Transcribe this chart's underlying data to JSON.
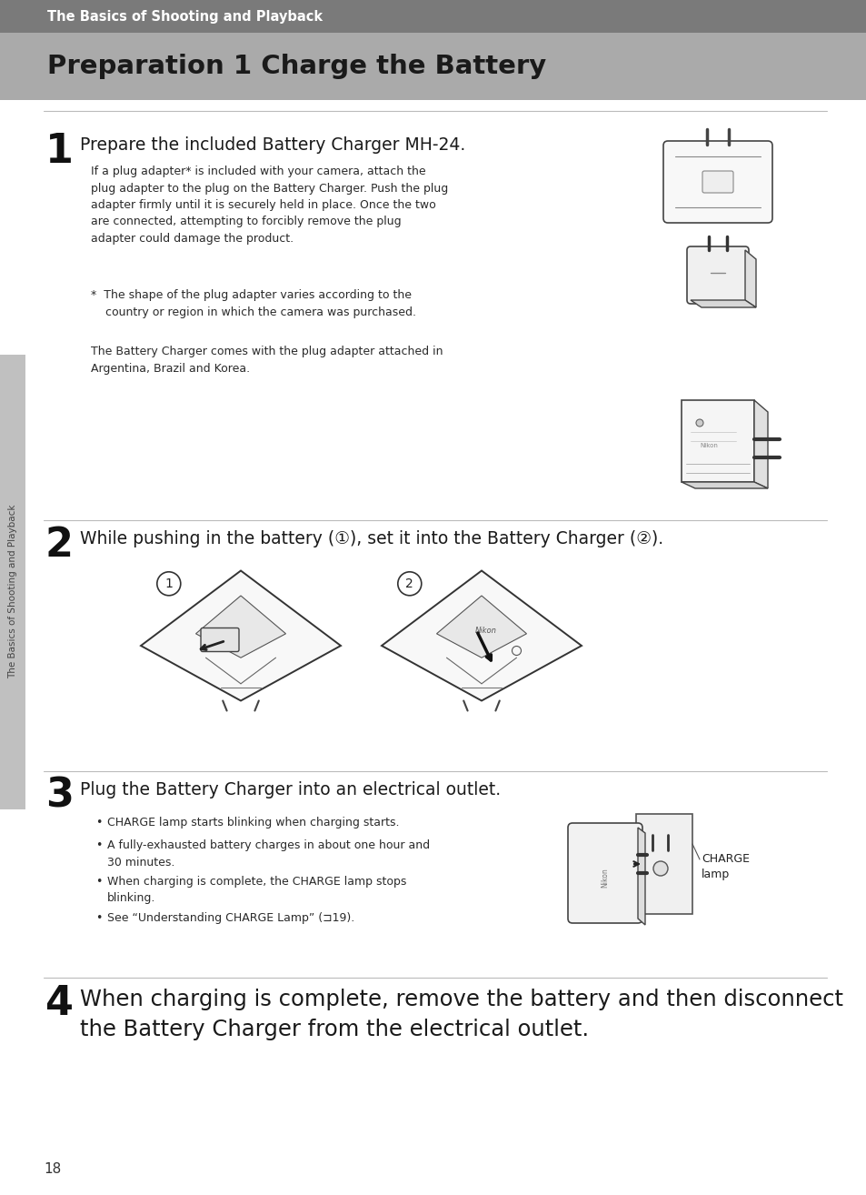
{
  "page_bg": "#ffffff",
  "header_bg": "#7a7a7a",
  "header_text": "The Basics of Shooting and Playback",
  "header_text_color": "#ffffff",
  "header_font_size": 10.5,
  "title_bg": "#aaaaaa",
  "title": "Preparation 1 Charge the Battery",
  "title_font_size": 21,
  "title_color": "#1a1a1a",
  "sidebar_bg": "#c0c0c0",
  "sidebar_text": "The Basics of Shooting and Playback",
  "sidebar_text_color": "#444444",
  "page_number": "18",
  "step1_num": "1",
  "step1_heading": "Prepare the included Battery Charger MH-24.",
  "step1_body1": "If a plug adapter* is included with your camera, attach the\nplug adapter to the plug on the Battery Charger. Push the plug\nadapter firmly until it is securely held in place. Once the two\nare connected, attempting to forcibly remove the plug\nadapter could damage the product.",
  "step1_note": "*  The shape of the plug adapter varies according to the\n    country or region in which the camera was purchased.",
  "step1_body2": "The Battery Charger comes with the plug adapter attached in\nArgentina, Brazil and Korea.",
  "step2_num": "2",
  "step2_heading": "While pushing in the battery (①), set it into the Battery Charger (②).",
  "step3_num": "3",
  "step3_heading": "Plug the Battery Charger into an electrical outlet.",
  "step3_bullet1": "CHARGE lamp starts blinking when charging starts.",
  "step3_bullet2": "A fully-exhausted battery charges in about one hour and\n30 minutes.",
  "step3_bullet3": "When charging is complete, the CHARGE lamp stops\nblinking.",
  "step3_bullet4": "See “Understanding CHARGE Lamp” (⊐19).",
  "charge_lamp_label": "CHARGE\nlamp",
  "step4_num": "4",
  "step4_heading": "When charging is complete, remove the battery and then disconnect\nthe Battery Charger from the electrical outlet.",
  "body_font_size": 9.0,
  "heading_font_size": 13.5,
  "step4_font_size": 17.5,
  "step_num_font_size": 30,
  "divider_color": "#bbbbbb",
  "body_color": "#2a2a2a",
  "heading_color": "#1a1a1a",
  "line_color": "#555555",
  "light_line": "#888888"
}
